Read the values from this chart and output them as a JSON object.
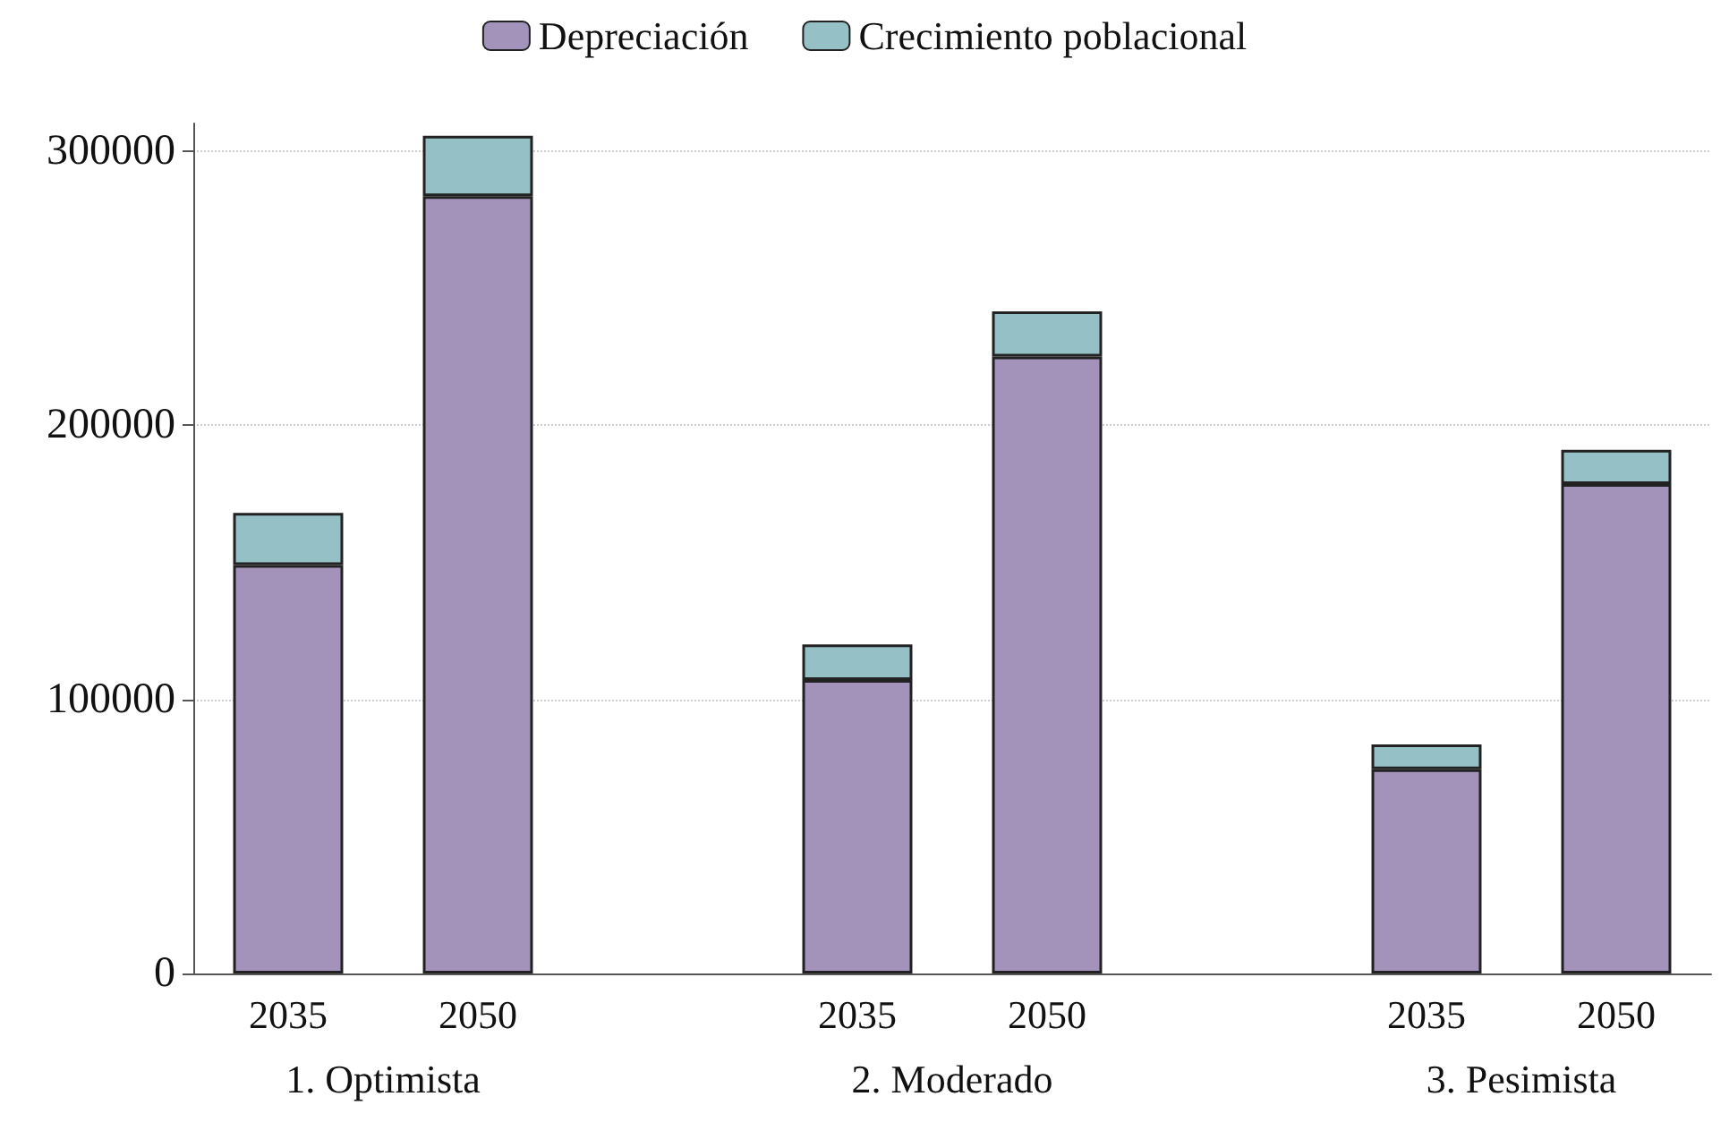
{
  "chart_data": {
    "type": "bar",
    "stacked": true,
    "categories": [
      "2035",
      "2050",
      null,
      "2035",
      "2050",
      null,
      "2035",
      "2050"
    ],
    "series": [
      {
        "name": "Depreciación",
        "color": "#a393bb",
        "values": [
          149000,
          283500,
          null,
          107000,
          225000,
          null,
          74500,
          178500
        ]
      },
      {
        "name": "Crecimiento poblacional",
        "color": "#95c0c6",
        "values": [
          19000,
          22000,
          null,
          13000,
          16500,
          null,
          9000,
          12500
        ]
      }
    ],
    "annotations": [
      "1. Optimista",
      "2. Moderado",
      "3. Pesimista"
    ],
    "ylim": [
      0,
      310000
    ],
    "yticks": [
      0,
      100000,
      200000,
      300000
    ],
    "grid": "y",
    "legend": "top"
  }
}
